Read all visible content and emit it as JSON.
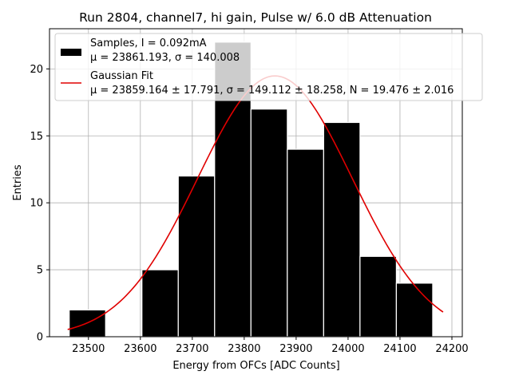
{
  "chart_data": {
    "type": "bar",
    "title": "Run 2804, channel7, hi gain, Pulse w/ 6.0 dB Attenuation",
    "xlabel": "Energy from OFCs [ADC Counts]",
    "ylabel": "Entries",
    "xlim": [
      23425,
      24220
    ],
    "ylim": [
      0,
      23
    ],
    "xticks": [
      23500,
      23600,
      23700,
      23800,
      23900,
      24000,
      24100,
      24200
    ],
    "yticks": [
      0,
      5,
      10,
      15,
      20
    ],
    "grid": true,
    "legend_position": "top-right",
    "histogram": {
      "name": "Samples, I = 0.092mA",
      "stats_label": "μ = 23861.193, σ = 140.008",
      "bin_edges": [
        23463,
        23533,
        23603,
        23673,
        23743,
        23813,
        23883,
        23953,
        24023,
        24093,
        24163
      ],
      "counts": [
        2,
        0,
        5,
        12,
        22,
        17,
        14,
        16,
        6,
        4
      ],
      "color": "#000000"
    },
    "fit": {
      "name": "Gaussian Fit",
      "stats_label": "μ = 23859.164 ± 17.791, σ = 149.112 ± 18.258, N = 19.476 ± 2.016",
      "mu": 23859.164,
      "sigma": 149.112,
      "amplitude": 19.476,
      "x_range": [
        23460,
        24183
      ],
      "color": "#e00000"
    }
  }
}
